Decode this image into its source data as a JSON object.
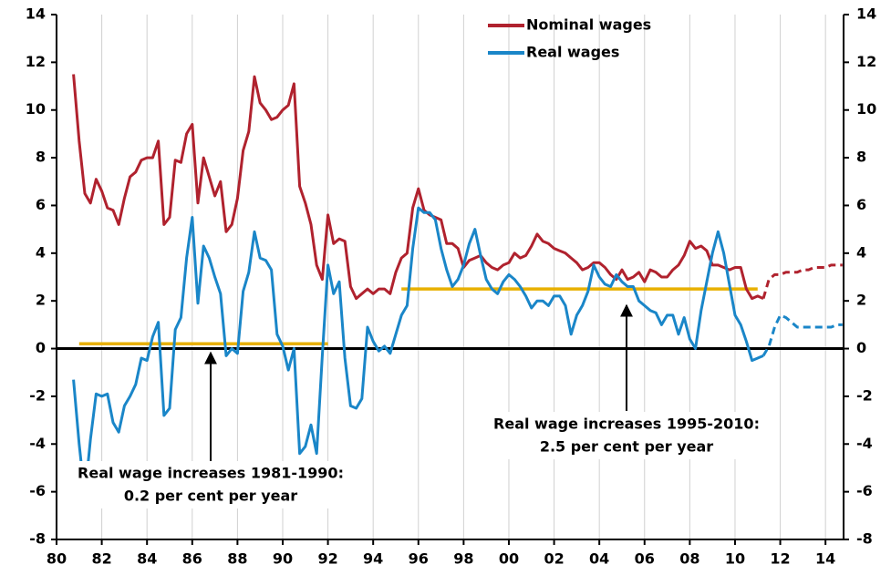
{
  "chart_data": {
    "type": "line",
    "xlim": [
      1980,
      2014.8
    ],
    "xticks": [
      {
        "value": 1980,
        "label": "80"
      },
      {
        "value": 1982,
        "label": "82"
      },
      {
        "value": 1984,
        "label": "84"
      },
      {
        "value": 1986,
        "label": "86"
      },
      {
        "value": 1988,
        "label": "88"
      },
      {
        "value": 1990,
        "label": "90"
      },
      {
        "value": 1992,
        "label": "92"
      },
      {
        "value": 1994,
        "label": "94"
      },
      {
        "value": 1996,
        "label": "96"
      },
      {
        "value": 1998,
        "label": "98"
      },
      {
        "value": 2000,
        "label": "00"
      },
      {
        "value": 2002,
        "label": "02"
      },
      {
        "value": 2004,
        "label": "04"
      },
      {
        "value": 2006,
        "label": "06"
      },
      {
        "value": 2008,
        "label": "08"
      },
      {
        "value": 2010,
        "label": "10"
      },
      {
        "value": 2012,
        "label": "12"
      },
      {
        "value": 2014,
        "label": "14"
      }
    ],
    "ylim": [
      -8,
      14
    ],
    "yticks": [
      -8,
      -6,
      -4,
      -2,
      0,
      2,
      4,
      6,
      8,
      10,
      12,
      14
    ],
    "grid": true,
    "legend": "top",
    "forecast_start": 2011.25,
    "x": [
      1980.75,
      1981,
      1981.25,
      1981.5,
      1981.75,
      1982,
      1982.25,
      1982.5,
      1982.75,
      1983,
      1983.25,
      1983.5,
      1983.75,
      1984,
      1984.25,
      1984.5,
      1984.75,
      1985,
      1985.25,
      1985.5,
      1985.75,
      1986,
      1986.25,
      1986.5,
      1986.75,
      1987,
      1987.25,
      1987.5,
      1987.75,
      1988,
      1988.25,
      1988.5,
      1988.75,
      1989,
      1989.25,
      1989.5,
      1989.75,
      1990,
      1990.25,
      1990.5,
      1990.75,
      1991,
      1991.25,
      1991.5,
      1991.75,
      1992,
      1992.25,
      1992.5,
      1992.75,
      1993,
      1993.25,
      1993.5,
      1993.75,
      1994,
      1994.25,
      1994.5,
      1994.75,
      1995,
      1995.25,
      1995.5,
      1995.75,
      1996,
      1996.25,
      1996.5,
      1996.75,
      1997,
      1997.25,
      1997.5,
      1997.75,
      1998,
      1998.25,
      1998.5,
      1998.75,
      1999,
      1999.25,
      1999.5,
      1999.75,
      2000,
      2000.25,
      2000.5,
      2000.75,
      2001,
      2001.25,
      2001.5,
      2001.75,
      2002,
      2002.25,
      2002.5,
      2002.75,
      2003,
      2003.25,
      2003.5,
      2003.75,
      2004,
      2004.25,
      2004.5,
      2004.75,
      2005,
      2005.25,
      2005.5,
      2005.75,
      2006,
      2006.25,
      2006.5,
      2006.75,
      2007,
      2007.25,
      2007.5,
      2007.75,
      2008,
      2008.25,
      2008.5,
      2008.75,
      2009,
      2009.25,
      2009.5,
      2009.75,
      2010,
      2010.25,
      2010.5,
      2010.75,
      2011,
      2011.25,
      2011.5,
      2011.75,
      2012,
      2012.25,
      2012.5,
      2012.75,
      2013,
      2013.25,
      2013.5,
      2013.75,
      2014,
      2014.25,
      2014.5,
      2014.75
    ],
    "series": [
      {
        "name": "Nominal wages",
        "color": "#b0222e",
        "values": [
          11.5,
          8.7,
          6.5,
          6.1,
          7.1,
          6.6,
          5.9,
          5.8,
          5.2,
          6.3,
          7.2,
          7.4,
          7.9,
          8.0,
          8.0,
          8.7,
          5.2,
          5.5,
          7.9,
          7.8,
          9.0,
          9.4,
          6.1,
          8.0,
          7.2,
          6.4,
          7.0,
          4.9,
          5.2,
          6.3,
          8.3,
          9.1,
          11.4,
          10.3,
          10.0,
          9.6,
          9.7,
          10.0,
          10.2,
          11.1,
          6.8,
          6.1,
          5.2,
          3.5,
          2.9,
          5.6,
          4.4,
          4.6,
          4.5,
          2.6,
          2.1,
          2.3,
          2.5,
          2.3,
          2.5,
          2.5,
          2.3,
          3.2,
          3.8,
          4.0,
          5.9,
          6.7,
          5.8,
          5.6,
          5.5,
          5.4,
          4.4,
          4.4,
          4.2,
          3.4,
          3.7,
          3.8,
          3.9,
          3.6,
          3.4,
          3.3,
          3.5,
          3.6,
          4.0,
          3.8,
          3.9,
          4.3,
          4.8,
          4.5,
          4.4,
          4.2,
          4.1,
          4.0,
          3.8,
          3.6,
          3.3,
          3.4,
          3.6,
          3.6,
          3.4,
          3.1,
          2.9,
          3.3,
          2.9,
          3.0,
          3.2,
          2.8,
          3.3,
          3.2,
          3.0,
          3.0,
          3.3,
          3.5,
          3.9,
          4.5,
          4.2,
          4.3,
          4.1,
          3.5,
          3.5,
          3.4,
          3.3,
          3.4,
          3.4,
          2.5,
          2.1,
          2.2,
          2.1,
          2.9,
          3.1,
          3.1,
          3.2,
          3.2,
          3.2,
          3.3,
          3.3,
          3.4,
          3.4,
          3.4,
          3.5,
          3.5,
          3.5
        ]
      },
      {
        "name": "Real wages",
        "color": "#1a86c8",
        "values": [
          -1.3,
          -4.0,
          -6.2,
          -3.8,
          -1.9,
          -2.0,
          -1.9,
          -3.1,
          -3.5,
          -2.4,
          -2.0,
          -1.5,
          -0.4,
          -0.5,
          0.5,
          1.1,
          -2.8,
          -2.5,
          0.8,
          1.3,
          3.8,
          5.5,
          1.9,
          4.3,
          3.8,
          3.0,
          2.3,
          -0.3,
          0.0,
          -0.2,
          2.4,
          3.2,
          4.9,
          3.8,
          3.7,
          3.3,
          0.6,
          0.1,
          -0.9,
          0.0,
          -4.4,
          -4.1,
          -3.2,
          -4.4,
          -0.3,
          3.5,
          2.3,
          2.8,
          -0.4,
          -2.4,
          -2.5,
          -2.1,
          0.9,
          0.3,
          -0.1,
          0.1,
          -0.2,
          0.6,
          1.4,
          1.8,
          4.2,
          5.9,
          5.7,
          5.7,
          5.4,
          4.2,
          3.3,
          2.6,
          2.9,
          3.5,
          4.4,
          5.0,
          3.9,
          2.9,
          2.5,
          2.3,
          2.8,
          3.1,
          2.9,
          2.6,
          2.2,
          1.7,
          2.0,
          2.0,
          1.8,
          2.2,
          2.2,
          1.8,
          0.6,
          1.4,
          1.8,
          2.4,
          3.5,
          3.0,
          2.7,
          2.6,
          3.1,
          2.8,
          2.6,
          2.6,
          2.0,
          1.8,
          1.6,
          1.5,
          1.0,
          1.4,
          1.4,
          0.6,
          1.3,
          0.4,
          0.0,
          1.6,
          2.8,
          4.0,
          4.9,
          4.0,
          2.7,
          1.4,
          1.0,
          0.3,
          -0.5,
          -0.4,
          -0.3,
          0.1,
          0.9,
          1.4,
          1.3,
          1.1,
          0.9,
          0.9,
          0.9,
          0.9,
          0.9,
          0.9,
          0.9,
          1.0,
          1.0
        ]
      }
    ],
    "reference_lines": [
      {
        "x": [
          1981,
          1992
        ],
        "value": 0.2,
        "color": "#e8b000"
      },
      {
        "x": [
          1995.25,
          2011
        ],
        "value": 2.5,
        "color": "#e8b000"
      }
    ],
    "annotations": [
      {
        "lines": [
          "Real wage increases 1981-1990:",
          "0.2 per cent per year"
        ]
      },
      {
        "lines": [
          "Real wage increases 1995-2010:",
          "2.5 per cent per year"
        ]
      }
    ]
  }
}
